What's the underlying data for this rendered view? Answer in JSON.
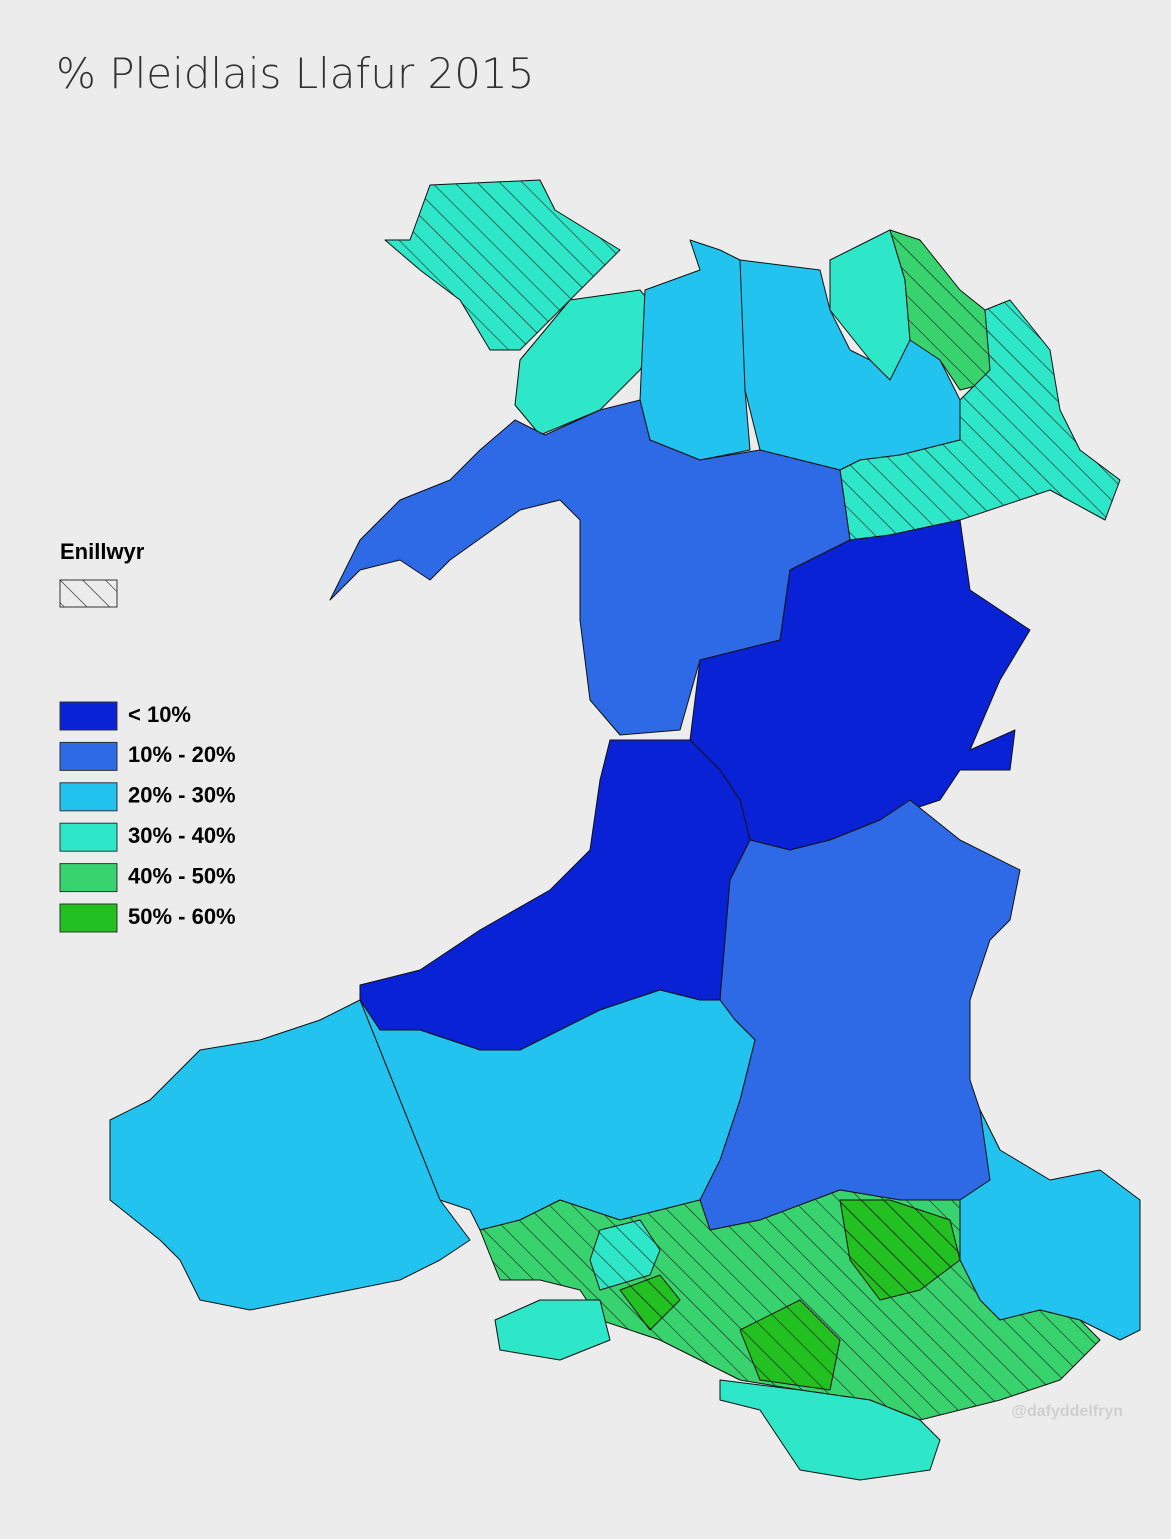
{
  "title": "% Pleidlais Llafur 2015",
  "legend": {
    "winners": {
      "label": "Enillwyr"
    },
    "bins": [
      {
        "label": "< 10%",
        "color": "#0a22d6"
      },
      {
        "label": "10% - 20%",
        "color": "#2f6ae6"
      },
      {
        "label": "20% - 30%",
        "color": "#22c4ef"
      },
      {
        "label": "30% - 40%",
        "color": "#2ee6c8"
      },
      {
        "label": "40% - 50%",
        "color": "#38d36e"
      },
      {
        "label": "50% - 60%",
        "color": "#22c020"
      }
    ]
  },
  "credit": "@dafyddelfryn"
}
